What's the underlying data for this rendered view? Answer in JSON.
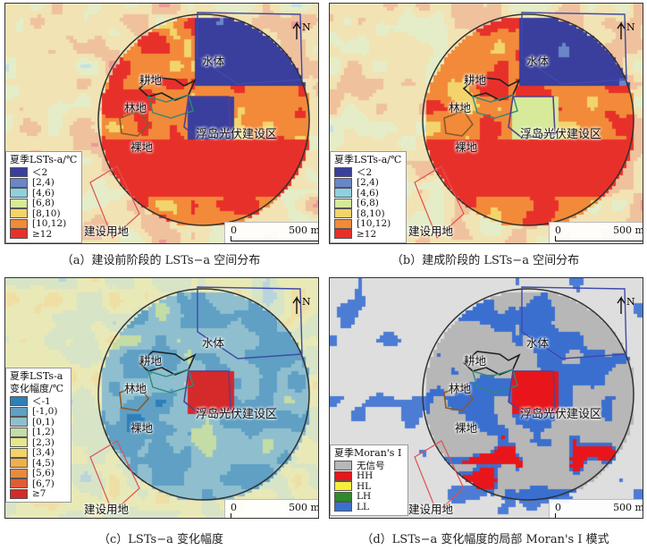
{
  "panels": [
    {
      "id": "a",
      "caption": "（a）建设前阶段的 LSTs−a 空间分布",
      "legend_title": "夏季LSTs-a/℃",
      "legend": [
        {
          "label": "＜2",
          "color": "#3a3f9e"
        },
        {
          "label": "[2,4)",
          "color": "#6a86c7"
        },
        {
          "label": "[4,6)",
          "color": "#8fd0e0"
        },
        {
          "label": "[6,8)",
          "color": "#d6ea9a"
        },
        {
          "label": "[8,10)",
          "color": "#f3d46b"
        },
        {
          "label": "[10,12)",
          "color": "#f28a3a"
        },
        {
          "label": "≥12",
          "color": "#e8302a"
        }
      ]
    },
    {
      "id": "b",
      "caption": "（b）建成阶段的 LSTs−a 空间分布",
      "legend_title": "夏季LSTs-a/℃",
      "legend": [
        {
          "label": "＜2",
          "color": "#3a3f9e"
        },
        {
          "label": "[2,4)",
          "color": "#6a86c7"
        },
        {
          "label": "[4,6)",
          "color": "#8fd0e0"
        },
        {
          "label": "[6,8)",
          "color": "#d6ea9a"
        },
        {
          "label": "[8,10)",
          "color": "#f3d46b"
        },
        {
          "label": "[10,12)",
          "color": "#f28a3a"
        },
        {
          "label": "≥12",
          "color": "#e8302a"
        }
      ]
    },
    {
      "id": "c",
      "caption": "（c）LSTs−a 变化幅度",
      "legend_title_1": "夏季LSTs-a",
      "legend_title_2": "变化幅度/℃",
      "legend": [
        {
          "label": "＜-1",
          "color": "#2f7fb8"
        },
        {
          "label": "[-1,0)",
          "color": "#5fa0c4"
        },
        {
          "label": "[0,1)",
          "color": "#8fbfcf"
        },
        {
          "label": "[1,2)",
          "color": "#c4dca6"
        },
        {
          "label": "[2,3)",
          "color": "#e6e68a"
        },
        {
          "label": "[3,4)",
          "color": "#f2d36a"
        },
        {
          "label": "[4,5)",
          "color": "#eeb04d"
        },
        {
          "label": "[5,6)",
          "color": "#e88a3e"
        },
        {
          "label": "[6,7)",
          "color": "#e05c34"
        },
        {
          "label": "≥7",
          "color": "#d42a2a"
        }
      ]
    },
    {
      "id": "d",
      "caption": "（d）LSTs−a 变化幅度的局部 Moran's I 模式",
      "legend_title": "夏季Moran's I",
      "legend": [
        {
          "label": "无信号",
          "color": "#b7b7b7"
        },
        {
          "label": "HH",
          "color": "#e8161a"
        },
        {
          "label": "HL",
          "color": "#f6ef3a"
        },
        {
          "label": "LH",
          "color": "#2f8a2a"
        },
        {
          "label": "LL",
          "color": "#3a6fd0"
        }
      ]
    }
  ],
  "map_labels": {
    "water": "水体",
    "farmland": "耕地",
    "forest": "林地",
    "bareland": "裸地",
    "pv_zone": "浮岛光伏建设区",
    "construction": "建设用地",
    "north": "N"
  },
  "scale": {
    "start": "0",
    "end": "500 m"
  },
  "colors": {
    "boundary": "#333333",
    "water_outline": "#3f4aa8",
    "pv_outline": "#5a3f8a",
    "farmland_outline": "#222222",
    "forest_outline": "#2a8a7a",
    "bareland_outline": "#8a5a2a",
    "construction_outline": "#e05050"
  }
}
